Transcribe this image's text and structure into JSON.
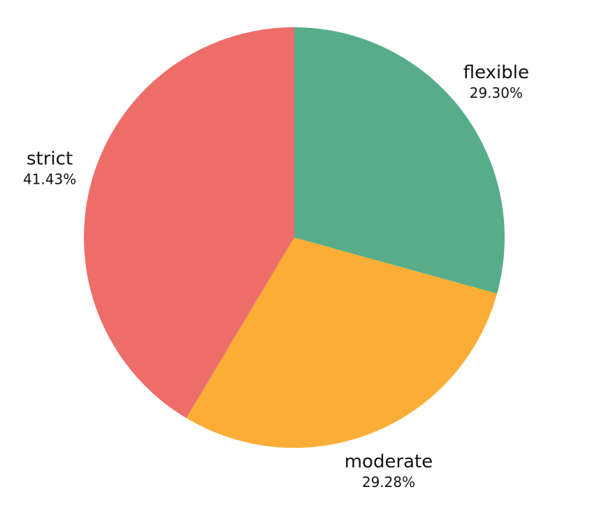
{
  "chart_data": {
    "type": "pie",
    "start_angle_deg": 0,
    "direction": "clockwise",
    "slices": [
      {
        "label": "flexible",
        "value": 29.3,
        "value_label": "29.30%",
        "color": "#57ad89"
      },
      {
        "label": "moderate",
        "value": 29.28,
        "value_label": "29.28%",
        "color": "#fcad36"
      },
      {
        "label": "strict",
        "value": 41.43,
        "value_label": "41.43%",
        "color": "#ed6e69"
      }
    ]
  }
}
